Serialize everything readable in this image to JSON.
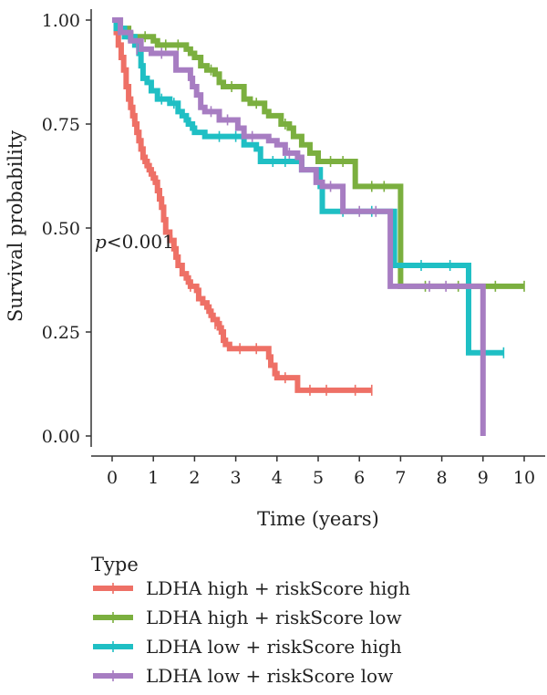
{
  "chart_data": {
    "type": "line",
    "subtype": "kaplan-meier step plot",
    "xlabel": "Time (years)",
    "ylabel": "Survival probability",
    "xlim": [
      0,
      10
    ],
    "ylim": [
      0,
      1
    ],
    "xticks": [
      "0",
      "1",
      "2",
      "3",
      "4",
      "5",
      "6",
      "7",
      "8",
      "9",
      "10"
    ],
    "yticks": [
      "0.00",
      "0.25",
      "0.50",
      "0.75",
      "1.00"
    ],
    "annotation": {
      "italic": "p",
      "rest": "<0.001",
      "x": 0.0,
      "y": 0.43
    },
    "legend": {
      "title": "Type",
      "position": "bottom"
    },
    "grid": false,
    "series": [
      {
        "name": "LDHA high + riskScore high",
        "color": "#EE7066",
        "points": [
          [
            0,
            1.0
          ],
          [
            0.1,
            0.97
          ],
          [
            0.15,
            0.94
          ],
          [
            0.22,
            0.91
          ],
          [
            0.28,
            0.88
          ],
          [
            0.34,
            0.84
          ],
          [
            0.4,
            0.81
          ],
          [
            0.45,
            0.79
          ],
          [
            0.5,
            0.77
          ],
          [
            0.55,
            0.75
          ],
          [
            0.6,
            0.73
          ],
          [
            0.65,
            0.71
          ],
          [
            0.7,
            0.69
          ],
          [
            0.75,
            0.67
          ],
          [
            0.8,
            0.66
          ],
          [
            0.85,
            0.65
          ],
          [
            0.9,
            0.64
          ],
          [
            0.95,
            0.63
          ],
          [
            1.0,
            0.62
          ],
          [
            1.05,
            0.61
          ],
          [
            1.1,
            0.59
          ],
          [
            1.15,
            0.57
          ],
          [
            1.2,
            0.55
          ],
          [
            1.25,
            0.52
          ],
          [
            1.3,
            0.49
          ],
          [
            1.4,
            0.47
          ],
          [
            1.5,
            0.45
          ],
          [
            1.55,
            0.43
          ],
          [
            1.6,
            0.41
          ],
          [
            1.7,
            0.39
          ],
          [
            1.8,
            0.38
          ],
          [
            1.85,
            0.37
          ],
          [
            1.9,
            0.36
          ],
          [
            2.05,
            0.35
          ],
          [
            2.1,
            0.33
          ],
          [
            2.2,
            0.32
          ],
          [
            2.3,
            0.31
          ],
          [
            2.35,
            0.3
          ],
          [
            2.4,
            0.29
          ],
          [
            2.45,
            0.28
          ],
          [
            2.55,
            0.27
          ],
          [
            2.6,
            0.26
          ],
          [
            2.65,
            0.25
          ],
          [
            2.7,
            0.23
          ],
          [
            2.75,
            0.22
          ],
          [
            2.85,
            0.21
          ],
          [
            3.4,
            0.21
          ],
          [
            3.8,
            0.19
          ],
          [
            3.85,
            0.17
          ],
          [
            3.95,
            0.15
          ],
          [
            4.0,
            0.14
          ],
          [
            4.45,
            0.14
          ],
          [
            4.5,
            0.11
          ],
          [
            6.3,
            0.11
          ]
        ],
        "censor": [
          [
            0.3,
            0.88
          ],
          [
            0.5,
            0.77
          ],
          [
            0.8,
            0.66
          ],
          [
            1.0,
            0.62
          ],
          [
            1.45,
            0.47
          ],
          [
            1.9,
            0.36
          ],
          [
            2.5,
            0.27
          ],
          [
            3.1,
            0.21
          ],
          [
            3.5,
            0.21
          ],
          [
            4.2,
            0.14
          ],
          [
            4.8,
            0.11
          ],
          [
            5.2,
            0.11
          ],
          [
            5.9,
            0.11
          ],
          [
            6.3,
            0.11
          ]
        ]
      },
      {
        "name": "LDHA high + riskScore low",
        "color": "#7BAF3F",
        "points": [
          [
            0,
            1.0
          ],
          [
            0.2,
            0.98
          ],
          [
            0.4,
            0.96
          ],
          [
            1.0,
            0.95
          ],
          [
            1.1,
            0.94
          ],
          [
            1.8,
            0.93
          ],
          [
            1.9,
            0.92
          ],
          [
            2.0,
            0.91
          ],
          [
            2.15,
            0.89
          ],
          [
            2.3,
            0.88
          ],
          [
            2.5,
            0.87
          ],
          [
            2.6,
            0.85
          ],
          [
            2.7,
            0.84
          ],
          [
            3.1,
            0.84
          ],
          [
            3.2,
            0.81
          ],
          [
            3.35,
            0.8
          ],
          [
            3.6,
            0.8
          ],
          [
            3.7,
            0.78
          ],
          [
            3.8,
            0.77
          ],
          [
            4.0,
            0.77
          ],
          [
            4.1,
            0.75
          ],
          [
            4.3,
            0.74
          ],
          [
            4.4,
            0.72
          ],
          [
            4.5,
            0.72
          ],
          [
            4.6,
            0.7
          ],
          [
            4.8,
            0.68
          ],
          [
            5.0,
            0.66
          ],
          [
            5.85,
            0.66
          ],
          [
            5.9,
            0.6
          ],
          [
            6.9,
            0.6
          ],
          [
            7.0,
            0.36
          ],
          [
            10.0,
            0.36
          ]
        ],
        "censor": [
          [
            0.5,
            0.96
          ],
          [
            0.8,
            0.96
          ],
          [
            1.3,
            0.94
          ],
          [
            1.6,
            0.94
          ],
          [
            2.4,
            0.88
          ],
          [
            2.9,
            0.84
          ],
          [
            3.5,
            0.8
          ],
          [
            4.2,
            0.75
          ],
          [
            5.3,
            0.66
          ],
          [
            5.6,
            0.66
          ],
          [
            6.3,
            0.6
          ],
          [
            6.6,
            0.6
          ],
          [
            7.6,
            0.36
          ],
          [
            8.4,
            0.36
          ],
          [
            9.3,
            0.36
          ],
          [
            10.0,
            0.36
          ]
        ]
      },
      {
        "name": "LDHA low + riskScore high",
        "color": "#1FBFC4",
        "points": [
          [
            0,
            1.0
          ],
          [
            0.1,
            0.98
          ],
          [
            0.3,
            0.96
          ],
          [
            0.55,
            0.94
          ],
          [
            0.65,
            0.92
          ],
          [
            0.7,
            0.89
          ],
          [
            0.75,
            0.86
          ],
          [
            0.85,
            0.85
          ],
          [
            0.95,
            0.83
          ],
          [
            1.1,
            0.81
          ],
          [
            1.4,
            0.8
          ],
          [
            1.6,
            0.78
          ],
          [
            1.7,
            0.77
          ],
          [
            1.8,
            0.76
          ],
          [
            1.85,
            0.75
          ],
          [
            1.95,
            0.74
          ],
          [
            2.0,
            0.73
          ],
          [
            2.25,
            0.72
          ],
          [
            3.15,
            0.72
          ],
          [
            3.2,
            0.7
          ],
          [
            3.5,
            0.69
          ],
          [
            3.6,
            0.66
          ],
          [
            4.4,
            0.66
          ],
          [
            4.6,
            0.64
          ],
          [
            5.05,
            0.6
          ],
          [
            5.1,
            0.54
          ],
          [
            6.8,
            0.54
          ],
          [
            6.85,
            0.41
          ],
          [
            8.6,
            0.41
          ],
          [
            8.65,
            0.2
          ],
          [
            9.5,
            0.2
          ]
        ],
        "censor": [
          [
            0.4,
            0.96
          ],
          [
            1.2,
            0.81
          ],
          [
            1.5,
            0.8
          ],
          [
            2.6,
            0.72
          ],
          [
            3.0,
            0.72
          ],
          [
            3.9,
            0.66
          ],
          [
            4.2,
            0.66
          ],
          [
            5.6,
            0.54
          ],
          [
            6.3,
            0.54
          ],
          [
            7.5,
            0.41
          ],
          [
            8.2,
            0.41
          ],
          [
            9.5,
            0.2
          ]
        ]
      },
      {
        "name": "LDHA low + riskScore low",
        "color": "#A77DC2",
        "points": [
          [
            0,
            1.0
          ],
          [
            0.2,
            0.97
          ],
          [
            0.45,
            0.95
          ],
          [
            0.7,
            0.93
          ],
          [
            0.95,
            0.92
          ],
          [
            1.5,
            0.92
          ],
          [
            1.55,
            0.88
          ],
          [
            1.9,
            0.86
          ],
          [
            1.95,
            0.84
          ],
          [
            2.05,
            0.82
          ],
          [
            2.15,
            0.79
          ],
          [
            2.25,
            0.78
          ],
          [
            2.5,
            0.78
          ],
          [
            2.6,
            0.76
          ],
          [
            3.0,
            0.76
          ],
          [
            3.05,
            0.74
          ],
          [
            3.2,
            0.72
          ],
          [
            3.7,
            0.72
          ],
          [
            3.8,
            0.71
          ],
          [
            4.0,
            0.7
          ],
          [
            4.2,
            0.68
          ],
          [
            4.5,
            0.67
          ],
          [
            4.6,
            0.64
          ],
          [
            4.9,
            0.64
          ],
          [
            4.95,
            0.61
          ],
          [
            5.1,
            0.6
          ],
          [
            5.5,
            0.6
          ],
          [
            5.6,
            0.54
          ],
          [
            6.7,
            0.54
          ],
          [
            6.75,
            0.36
          ],
          [
            8.95,
            0.36
          ],
          [
            9.0,
            0.0
          ]
        ],
        "censor": [
          [
            0.6,
            0.93
          ],
          [
            1.2,
            0.92
          ],
          [
            2.4,
            0.78
          ],
          [
            2.8,
            0.76
          ],
          [
            3.4,
            0.72
          ],
          [
            4.3,
            0.68
          ],
          [
            5.3,
            0.6
          ],
          [
            6.0,
            0.54
          ],
          [
            6.4,
            0.54
          ],
          [
            7.7,
            0.36
          ],
          [
            8.1,
            0.36
          ]
        ]
      }
    ]
  }
}
